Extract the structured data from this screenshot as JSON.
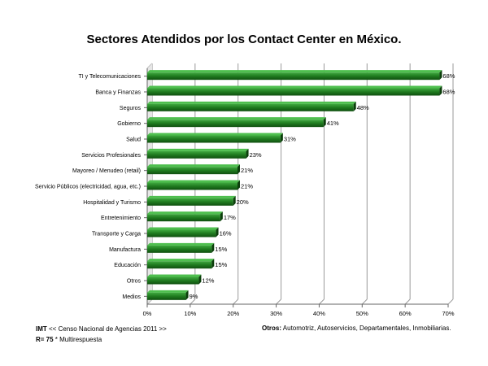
{
  "chart_data": {
    "type": "bar",
    "orientation": "horizontal",
    "title": "Sectores Atendidos por los Contact Center en México.",
    "categories": [
      "TI y Telecomunicaciones",
      "Banca y Finanzas",
      "Seguros",
      "Gobierno",
      "Salud",
      "Servicios Profesionales",
      "Mayoreo / Menudeo (retail)",
      "Servicio Públicos (electricidad, agua, etc.)",
      "Hospitalidad y Turismo",
      "Entretenimiento",
      "Transporte y Carga",
      "Manufactura",
      "Educación",
      "Otros",
      "Medios"
    ],
    "values": [
      68,
      68,
      48,
      41,
      31,
      23,
      21,
      21,
      20,
      17,
      16,
      15,
      15,
      12,
      9
    ],
    "value_labels": [
      "68%",
      "68%",
      "48%",
      "41%",
      "31%",
      "23%",
      "21%",
      "21%",
      "20%",
      "17%",
      "16%",
      "15%",
      "15%",
      "12%",
      "9%"
    ],
    "xlim": [
      0,
      70
    ],
    "xticks": [
      "0%",
      "10%",
      "20%",
      "30%",
      "40%",
      "50%",
      "60%",
      "70%"
    ],
    "grid": true,
    "bar_color": "#1f7a1f"
  },
  "footer": {
    "source_bold": "IMT",
    "source_text": " << Censo Nacional de Agencias 2011 >>",
    "sample_bold": "R= 75",
    "sample_text": " * Multirespuesta",
    "others_bold": "Otros:",
    "others_text": " Automotriz, Autoservicios, Departamentales, Inmobiliarias."
  }
}
